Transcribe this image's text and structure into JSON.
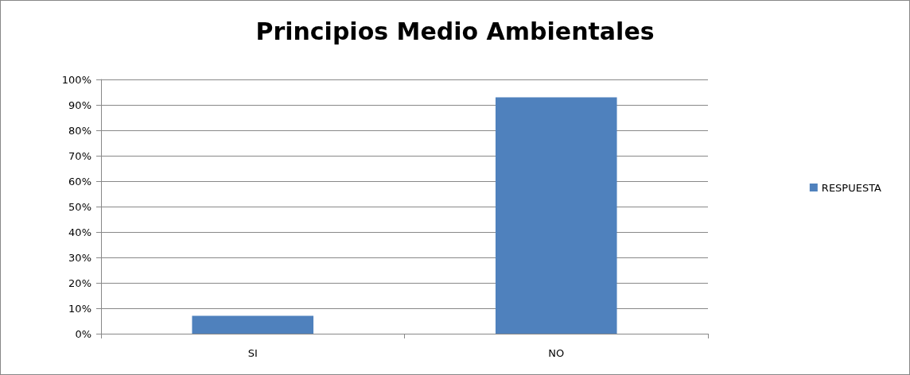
{
  "chart_data": {
    "type": "bar",
    "title": "Principios Medio Ambientales",
    "categories": [
      "SI",
      "NO"
    ],
    "series": [
      {
        "name": "RESPUESTA",
        "color": "#4f81bd",
        "values": [
          7,
          93
        ]
      }
    ],
    "ylim": [
      0,
      100
    ],
    "yticks": [
      {
        "value": 0,
        "label": "0%"
      },
      {
        "value": 10,
        "label": "10%"
      },
      {
        "value": 20,
        "label": "20%"
      },
      {
        "value": 30,
        "label": "30%"
      },
      {
        "value": 40,
        "label": "40%"
      },
      {
        "value": 50,
        "label": "50%"
      },
      {
        "value": 60,
        "label": "60%"
      },
      {
        "value": 70,
        "label": "70%"
      },
      {
        "value": 80,
        "label": "80%"
      },
      {
        "value": 90,
        "label": "90%"
      },
      {
        "value": 100,
        "label": "100%"
      }
    ],
    "grid": "y",
    "legend": "right"
  }
}
